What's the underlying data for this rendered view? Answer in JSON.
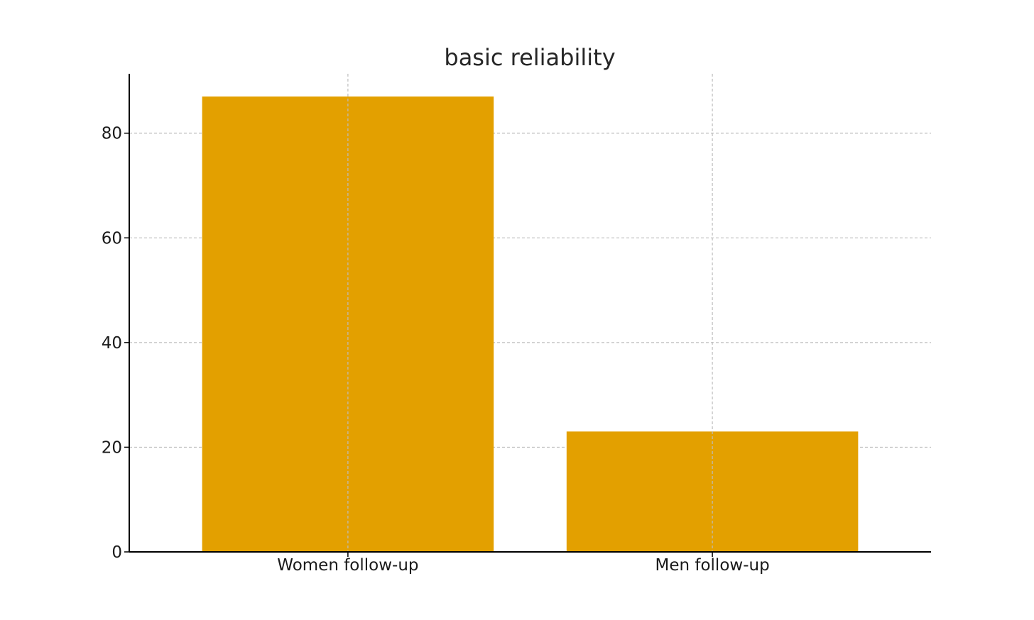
{
  "chart_data": {
    "type": "bar",
    "title": "basic reliability",
    "xlabel": "",
    "ylabel": "",
    "categories": [
      "Women follow-up",
      "Men follow-up"
    ],
    "values": [
      87,
      23
    ],
    "ylim": [
      0,
      91.35
    ],
    "yticks": [
      0,
      20,
      40,
      60,
      80
    ],
    "ytick_labels": [
      "0",
      "20",
      "40",
      "60",
      "80"
    ],
    "grid": true,
    "bar_color": "#E3A000",
    "legend": "none"
  }
}
